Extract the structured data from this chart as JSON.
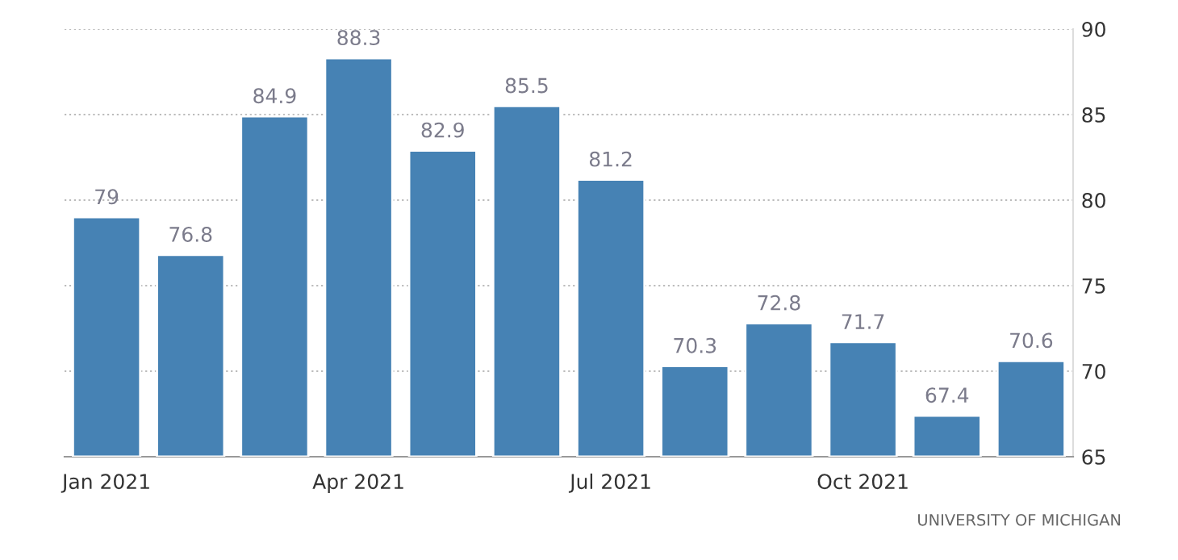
{
  "chart_data": {
    "type": "bar",
    "categories": [
      "Jan 2021",
      null,
      null,
      "Apr 2021",
      null,
      null,
      "Jul 2021",
      null,
      null,
      "Oct 2021",
      null,
      null
    ],
    "values": [
      79,
      76.8,
      84.9,
      88.3,
      82.9,
      85.5,
      81.2,
      70.3,
      72.8,
      71.7,
      67.4,
      70.6
    ],
    "color": "#4682b4",
    "ylim": [
      65,
      90
    ],
    "yticks": [
      65,
      70,
      75,
      80,
      85,
      90
    ],
    "grid": "y",
    "data_labels": true,
    "annotations": [
      "UNIVERSITY OF MICHIGAN"
    ]
  }
}
